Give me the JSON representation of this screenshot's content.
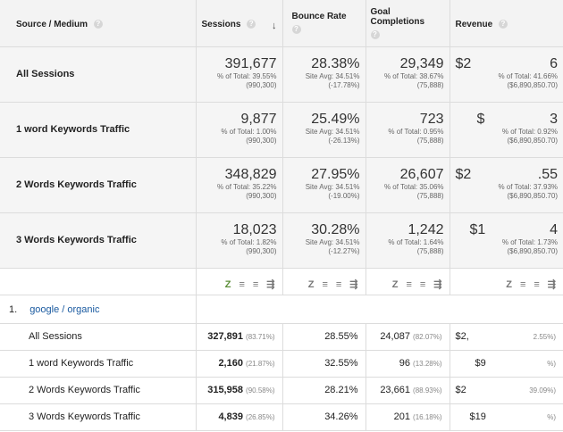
{
  "header": {
    "source_medium": "Source / Medium",
    "sessions": "Sessions",
    "bounce_rate": "Bounce Rate",
    "goal_line1": "Goal",
    "goal_line2": "Completions",
    "revenue": "Revenue",
    "help_glyph": "?",
    "sort_glyph": "↓"
  },
  "summary": [
    {
      "label": "All Sessions",
      "sessions": "391,677",
      "sessions_sub1": "% of Total: 39.55%",
      "sessions_sub2": "(990,300)",
      "bounce": "28.38%",
      "bounce_sub1": "Site Avg: 34.51%",
      "bounce_sub2": "(-17.78%)",
      "goals": "29,349",
      "goals_sub1": "% of Total: 38.67%",
      "goals_sub2": "(75,888)",
      "revenue_left": "$2",
      "revenue_right": "6",
      "revenue_sub1": "% of Total: 41.66%",
      "revenue_sub2": "($6,890,850.70)"
    },
    {
      "label": "1 word Keywords Traffic",
      "sessions": "9,877",
      "sessions_sub1": "% of Total: 1.00%",
      "sessions_sub2": "(990,300)",
      "bounce": "25.49%",
      "bounce_sub1": "Site Avg: 34.51%",
      "bounce_sub2": "(-26.13%)",
      "goals": "723",
      "goals_sub1": "% of Total: 0.95%",
      "goals_sub2": "(75,888)",
      "revenue_left": "$",
      "revenue_right": "3",
      "revenue_sub1": "% of Total: 0.92%",
      "revenue_sub2": "($6,890,850.70)"
    },
    {
      "label": "2 Words Keywords Traffic",
      "sessions": "348,829",
      "sessions_sub1": "% of Total: 35.22%",
      "sessions_sub2": "(990,300)",
      "bounce": "27.95%",
      "bounce_sub1": "Site Avg: 34.51%",
      "bounce_sub2": "(-19.00%)",
      "goals": "26,607",
      "goals_sub1": "% of Total: 35.06%",
      "goals_sub2": "(75,888)",
      "revenue_left": "$2",
      "revenue_right": ".55",
      "revenue_sub1": "% of Total: 37.93%",
      "revenue_sub2": "($6,890,850.70)"
    },
    {
      "label": "3 Words Keywords Traffic",
      "sessions": "18,023",
      "sessions_sub1": "% of Total: 1.82%",
      "sessions_sub2": "(990,300)",
      "bounce": "30.28%",
      "bounce_sub1": "Site Avg: 34.51%",
      "bounce_sub2": "(-12.27%)",
      "goals": "1,242",
      "goals_sub1": "% of Total: 1.64%",
      "goals_sub2": "(75,888)",
      "revenue_left": "$1",
      "revenue_right": "4",
      "revenue_sub1": "% of Total: 1.73%",
      "revenue_sub2": "($6,890,850.70)"
    }
  ],
  "toolbar_glyphs": {
    "chart": "Z",
    "bars": "≡",
    "pct": "≡",
    "compare": "⇶"
  },
  "group": {
    "index": "1.",
    "link": "google / organic"
  },
  "details": [
    {
      "label": "All Sessions",
      "sessions": "327,891",
      "sessions_pct": "(83.71%)",
      "bounce": "28.55%",
      "goals": "24,087",
      "goals_pct": "(82.07%)",
      "rev_left": "$2,",
      "rev_right": "2.55%)"
    },
    {
      "label": "1 word Keywords Traffic",
      "sessions": "2,160",
      "sessions_pct": "(21.87%)",
      "bounce": "32.55%",
      "goals": "96",
      "goals_pct": "(13.28%)",
      "rev_left": "$9",
      "rev_right": "%)"
    },
    {
      "label": "2 Words Keywords Traffic",
      "sessions": "315,958",
      "sessions_pct": "(90.58%)",
      "bounce": "28.21%",
      "goals": "23,661",
      "goals_pct": "(88.93%)",
      "rev_left": "$2",
      "rev_right": "39.09%)"
    },
    {
      "label": "3 Words Keywords Traffic",
      "sessions": "4,839",
      "sessions_pct": "(26.85%)",
      "bounce": "34.26%",
      "goals": "201",
      "goals_pct": "(16.18%)",
      "rev_left": "$19",
      "rev_right": "%)"
    }
  ]
}
